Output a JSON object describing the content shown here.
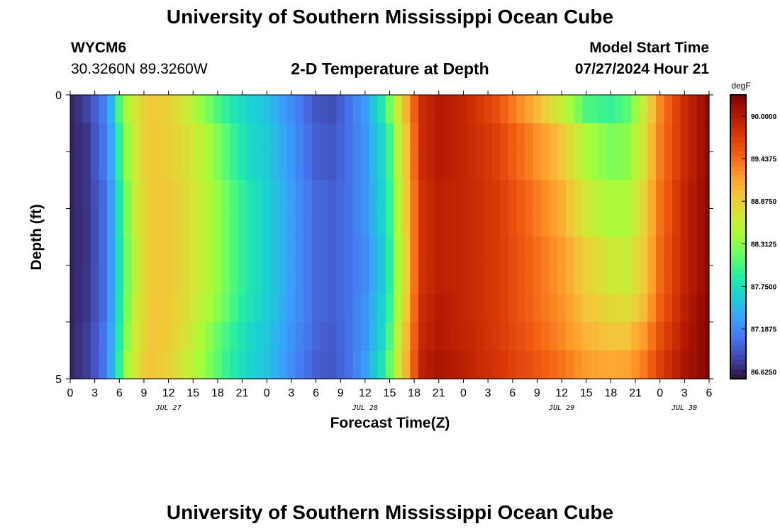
{
  "header": {
    "title": "University of Southern Mississippi Ocean Cube",
    "station_id": "WYCM6",
    "station_coords": "30.3260N  89.3260W",
    "plot_title": "2-D Temperature at Depth",
    "model_start_label": "Model Start Time",
    "model_start_value": "07/27/2024 Hour 21"
  },
  "footer": {
    "title": "University of Southern Mississippi Ocean Cube"
  },
  "colors": {
    "palette": [
      "#30123b",
      "#4145ab",
      "#4675ed",
      "#39a2fc",
      "#1bcfd4",
      "#24eca6",
      "#61fc6c",
      "#a4fc3b",
      "#d1e834",
      "#f3c63a",
      "#fe9b2d",
      "#f36315",
      "#d93806",
      "#b11901",
      "#7a0402"
    ]
  },
  "chart_data": {
    "type": "heatmap",
    "xlabel": "Forecast Time(Z)",
    "ylabel": "Depth (ft)",
    "colorbar_unit": "degF",
    "x_tick_labels": [
      "0",
      "3",
      "6",
      "9",
      "12",
      "15",
      "18",
      "21",
      "0",
      "3",
      "6",
      "9",
      "12",
      "15",
      "18",
      "21",
      "0",
      "3",
      "6",
      "9",
      "12",
      "15",
      "18",
      "21",
      "0",
      "3",
      "6"
    ],
    "date_labels": [
      "JUL 27",
      "JUL 28",
      "JUL 29",
      "JUL 30"
    ],
    "y_tick_labels": [
      "0",
      "5"
    ],
    "ylim": [
      0,
      5
    ],
    "colorbar_ticks": [
      "86.6250",
      "87.1875",
      "87.7500",
      "88.3125",
      "88.8750",
      "89.4375",
      "90.0000"
    ],
    "clim": [
      86.53,
      90.28
    ],
    "x": [
      "07/27 00",
      "07/27 01",
      "07/27 02",
      "07/27 03",
      "07/27 04",
      "07/27 05",
      "07/27 06",
      "07/27 07",
      "07/27 08",
      "07/27 09",
      "07/27 10",
      "07/27 11",
      "07/27 12",
      "07/27 13",
      "07/27 14",
      "07/27 15",
      "07/27 16",
      "07/27 17",
      "07/27 18",
      "07/27 19",
      "07/27 20",
      "07/27 21",
      "07/27 22",
      "07/27 23",
      "07/28 00",
      "07/28 01",
      "07/28 02",
      "07/28 03",
      "07/28 04",
      "07/28 05",
      "07/28 06",
      "07/28 07",
      "07/28 08",
      "07/28 09",
      "07/28 10",
      "07/28 11",
      "07/28 12",
      "07/28 13",
      "07/28 14",
      "07/28 15",
      "07/28 16",
      "07/28 17",
      "07/28 18",
      "07/28 19",
      "07/28 20",
      "07/28 21",
      "07/28 22",
      "07/28 23",
      "07/29 00",
      "07/29 01",
      "07/29 02",
      "07/29 03",
      "07/29 04",
      "07/29 05",
      "07/29 06",
      "07/29 07",
      "07/29 08",
      "07/29 09",
      "07/29 10",
      "07/29 11",
      "07/29 12",
      "07/29 13",
      "07/29 14",
      "07/29 15",
      "07/29 16",
      "07/29 17",
      "07/29 18",
      "07/29 19",
      "07/29 20",
      "07/29 21",
      "07/29 22",
      "07/29 23",
      "07/30 00",
      "07/30 01",
      "07/30 02",
      "07/30 03",
      "07/30 04",
      "07/30 05",
      "07/30 06"
    ],
    "depth": [
      0.25,
      0.75,
      1.25,
      1.75,
      2.25,
      2.75,
      3.25,
      3.75,
      4.25,
      4.75
    ],
    "anchor_hours": [
      0,
      2,
      4,
      5,
      6,
      7,
      8,
      9,
      10,
      12,
      14,
      16,
      18,
      20,
      22,
      24,
      26,
      28,
      30,
      32,
      34,
      36,
      38,
      39,
      40,
      41,
      42,
      43,
      45,
      48,
      52,
      56,
      60,
      63,
      66,
      68,
      70,
      72,
      75,
      78
    ],
    "anchor_profiles": [
      [
        86.62,
        86.62,
        86.62,
        86.62,
        86.62,
        86.62,
        86.62,
        86.62,
        86.62,
        86.62
      ],
      [
        86.78,
        86.72,
        86.72,
        86.72,
        86.7,
        86.7,
        86.72,
        86.72,
        86.75,
        86.75
      ],
      [
        87.1,
        87.05,
        87.05,
        87.0,
        87.0,
        87.0,
        87.0,
        87.0,
        87.05,
        87.05
      ],
      [
        87.45,
        87.35,
        87.35,
        87.3,
        87.3,
        87.3,
        87.3,
        87.3,
        87.35,
        87.4
      ],
      [
        88.05,
        87.9,
        87.9,
        87.8,
        87.8,
        87.75,
        87.75,
        87.8,
        87.85,
        87.9
      ],
      [
        88.45,
        88.35,
        88.35,
        88.25,
        88.25,
        88.2,
        88.2,
        88.25,
        88.3,
        88.4
      ],
      [
        88.7,
        88.65,
        88.65,
        88.6,
        88.6,
        88.55,
        88.55,
        88.6,
        88.65,
        88.7
      ],
      [
        88.85,
        88.85,
        88.85,
        88.8,
        88.8,
        88.8,
        88.8,
        88.8,
        88.85,
        88.9
      ],
      [
        88.9,
        88.92,
        88.92,
        88.92,
        88.92,
        88.92,
        88.92,
        88.95,
        88.95,
        88.95
      ],
      [
        88.85,
        88.88,
        88.88,
        88.92,
        88.92,
        88.92,
        88.92,
        88.92,
        88.9,
        88.85
      ],
      [
        88.65,
        88.75,
        88.75,
        88.8,
        88.8,
        88.8,
        88.8,
        88.78,
        88.72,
        88.65
      ],
      [
        88.35,
        88.55,
        88.55,
        88.6,
        88.6,
        88.6,
        88.6,
        88.55,
        88.45,
        88.4
      ],
      [
        88.05,
        88.25,
        88.25,
        88.35,
        88.35,
        88.35,
        88.35,
        88.3,
        88.15,
        88.1
      ],
      [
        87.8,
        87.95,
        87.95,
        88.05,
        88.05,
        88.05,
        88.05,
        88.0,
        87.9,
        87.85
      ],
      [
        87.62,
        87.7,
        87.7,
        87.8,
        87.8,
        87.8,
        87.8,
        87.75,
        87.68,
        87.65
      ],
      [
        87.52,
        87.58,
        87.58,
        87.62,
        87.62,
        87.62,
        87.62,
        87.6,
        87.55,
        87.52
      ],
      [
        87.3,
        87.38,
        87.38,
        87.42,
        87.42,
        87.42,
        87.42,
        87.4,
        87.35,
        87.32
      ],
      [
        87.1,
        87.15,
        87.15,
        87.2,
        87.2,
        87.2,
        87.2,
        87.2,
        87.15,
        87.12
      ],
      [
        86.9,
        86.95,
        86.95,
        87.0,
        87.0,
        87.0,
        87.0,
        87.0,
        86.98,
        86.95
      ],
      [
        86.85,
        86.9,
        86.9,
        86.95,
        86.95,
        86.95,
        86.95,
        86.95,
        86.92,
        86.9
      ],
      [
        87.05,
        87.05,
        87.05,
        87.05,
        87.05,
        87.05,
        87.05,
        87.05,
        87.05,
        87.05
      ],
      [
        87.3,
        87.25,
        87.25,
        87.25,
        87.25,
        87.2,
        87.2,
        87.25,
        87.25,
        87.3
      ],
      [
        87.8,
        87.65,
        87.65,
        87.6,
        87.6,
        87.55,
        87.55,
        87.6,
        87.65,
        87.75
      ],
      [
        88.2,
        88.0,
        88.0,
        87.95,
        87.95,
        87.9,
        87.9,
        87.95,
        88.05,
        88.15
      ],
      [
        88.65,
        88.5,
        88.5,
        88.45,
        88.45,
        88.4,
        88.4,
        88.45,
        88.55,
        88.6
      ],
      [
        89.05,
        88.95,
        88.95,
        88.9,
        88.9,
        88.85,
        88.85,
        88.9,
        89.0,
        89.05
      ],
      [
        89.5,
        89.45,
        89.45,
        89.4,
        89.4,
        89.4,
        89.4,
        89.45,
        89.5,
        89.55
      ],
      [
        89.85,
        89.85,
        89.85,
        89.8,
        89.8,
        89.8,
        89.8,
        89.85,
        89.9,
        89.95
      ],
      [
        90.0,
        90.0,
        90.0,
        89.95,
        89.95,
        89.95,
        89.95,
        90.0,
        90.0,
        90.05
      ],
      [
        89.9,
        89.9,
        89.9,
        89.9,
        89.9,
        89.9,
        89.9,
        89.9,
        89.92,
        89.95
      ],
      [
        89.6,
        89.7,
        89.7,
        89.75,
        89.75,
        89.75,
        89.75,
        89.75,
        89.75,
        89.78
      ],
      [
        89.15,
        89.35,
        89.35,
        89.45,
        89.45,
        89.5,
        89.5,
        89.5,
        89.55,
        89.6
      ],
      [
        88.6,
        88.95,
        88.95,
        89.1,
        89.1,
        89.2,
        89.2,
        89.25,
        89.3,
        89.4
      ],
      [
        88.05,
        88.45,
        88.45,
        88.65,
        88.65,
        88.85,
        88.85,
        88.95,
        89.05,
        89.2
      ],
      [
        87.95,
        88.25,
        88.25,
        88.45,
        88.45,
        88.65,
        88.65,
        88.8,
        88.95,
        89.1
      ],
      [
        88.1,
        88.3,
        88.3,
        88.45,
        88.45,
        88.6,
        88.6,
        88.75,
        88.95,
        89.15
      ],
      [
        88.6,
        88.7,
        88.7,
        88.8,
        88.8,
        88.9,
        88.9,
        89.0,
        89.2,
        89.35
      ],
      [
        89.3,
        89.35,
        89.35,
        89.4,
        89.4,
        89.45,
        89.45,
        89.5,
        89.6,
        89.7
      ],
      [
        89.85,
        89.85,
        89.85,
        89.9,
        89.9,
        89.9,
        89.9,
        89.95,
        90.0,
        90.05
      ],
      [
        90.2,
        90.2,
        90.2,
        90.2,
        90.2,
        90.2,
        90.2,
        90.25,
        90.25,
        90.25
      ]
    ]
  }
}
